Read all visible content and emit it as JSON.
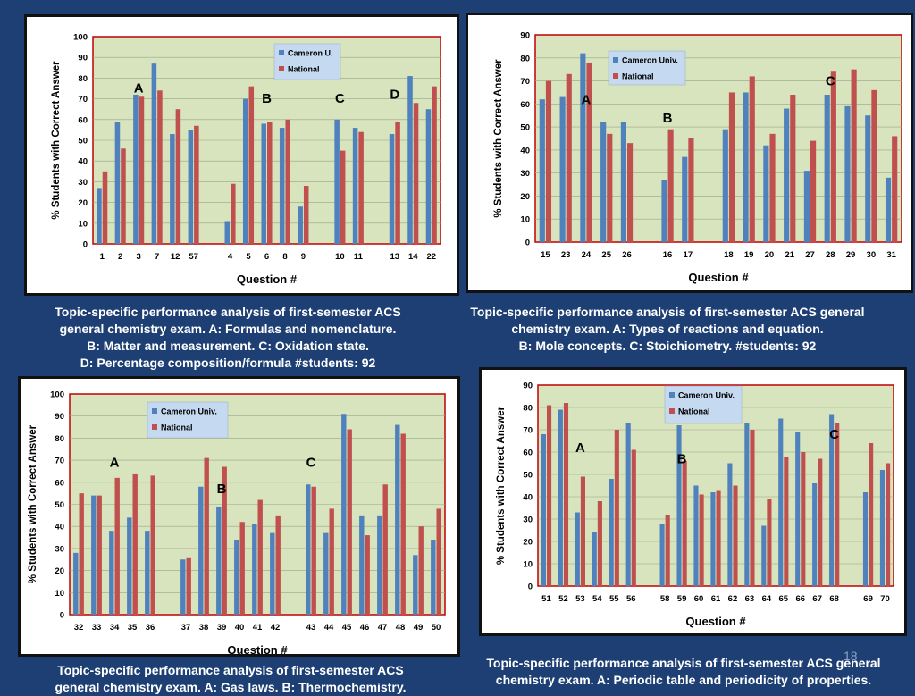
{
  "colors": {
    "series_a": "#4f81bd",
    "series_b": "#c0504d",
    "plot_bg": "#d7e4bd",
    "plot_border": "#c00000",
    "page_bg": "#1d3f73"
  },
  "page_number": "18",
  "captions": [
    [
      "Topic-specific performance analysis of first-semester ACS",
      "general chemistry exam. A: Formulas and nomenclature.",
      "B: Matter and measurement. C: Oxidation state.",
      "D: Percentage composition/formula #students: 92"
    ],
    [
      "Topic-specific performance analysis of first-semester ACS general",
      "chemistry exam. A: Types of reactions and equation.",
      "B: Mole concepts. C: Stoichiometry. #students: 92"
    ],
    [
      "Topic-specific performance analysis of first-semester ACS",
      "general chemistry exam. A: Gas laws. B: Thermochemistry."
    ],
    [
      "Topic-specific performance analysis of first-semester ACS general",
      "chemistry exam. A: Periodic table and periodicity of properties."
    ]
  ],
  "chart_data": [
    {
      "type": "bar",
      "xlabel": "Question #",
      "ylabel": "% Students with Correct Answer",
      "ylim": [
        0,
        100
      ],
      "yticks": [
        "0",
        "10",
        "20",
        "30",
        "40",
        "50",
        "60",
        "70",
        "80",
        "90",
        "100"
      ],
      "legend_position": "top-right",
      "categories": [
        "1",
        "2",
        "3",
        "7",
        "12",
        "57",
        "",
        "4",
        "5",
        "6",
        "8",
        "9",
        "",
        "10",
        "11",
        "",
        "13",
        "14",
        "22"
      ],
      "series": [
        {
          "name": "Cameron U.",
          "values": [
            27,
            59,
            72,
            87,
            53,
            55,
            null,
            11,
            70,
            58,
            56,
            18,
            null,
            60,
            56,
            null,
            53,
            81,
            65
          ]
        },
        {
          "name": "National",
          "values": [
            35,
            46,
            71,
            74,
            65,
            57,
            null,
            29,
            76,
            59,
            60,
            28,
            null,
            45,
            54,
            null,
            59,
            68,
            76
          ]
        }
      ],
      "annotations": [
        {
          "text": "A",
          "x": "3",
          "y": 73
        },
        {
          "text": "B",
          "x": "6",
          "y": 68
        },
        {
          "text": "C",
          "x": "10",
          "y": 68
        },
        {
          "text": "D",
          "x": "13",
          "y": 70
        }
      ]
    },
    {
      "type": "bar",
      "xlabel": "Question #",
      "ylabel": "% Students with Correct Answer",
      "ylim": [
        0,
        90
      ],
      "yticks": [
        "0",
        "10",
        "20",
        "30",
        "40",
        "50",
        "60",
        "70",
        "80",
        "90"
      ],
      "legend_position": "top-left",
      "categories": [
        "15",
        "23",
        "24",
        "25",
        "26",
        "",
        "16",
        "17",
        "",
        "18",
        "19",
        "20",
        "21",
        "27",
        "28",
        "29",
        "30",
        "31"
      ],
      "series": [
        {
          "name": "Cameron Univ.",
          "values": [
            62,
            63,
            82,
            52,
            52,
            null,
            27,
            37,
            null,
            49,
            65,
            42,
            58,
            31,
            64,
            59,
            55,
            28
          ]
        },
        {
          "name": "National",
          "values": [
            70,
            73,
            78,
            47,
            43,
            null,
            49,
            45,
            null,
            65,
            72,
            47,
            64,
            44,
            74,
            75,
            66,
            46
          ]
        }
      ],
      "annotations": [
        {
          "text": "A",
          "x": "24",
          "y": 60
        },
        {
          "text": "B",
          "x": "16",
          "y": 52
        },
        {
          "text": "C",
          "x": "28",
          "y": 68
        }
      ]
    },
    {
      "type": "bar",
      "xlabel": "Question #",
      "ylabel": "% Students with Correct Answer",
      "ylim": [
        0,
        100
      ],
      "yticks": [
        "0",
        "10",
        "20",
        "30",
        "40",
        "50",
        "60",
        "70",
        "80",
        "90",
        "100"
      ],
      "legend_position": "top-left",
      "categories": [
        "32",
        "33",
        "34",
        "35",
        "36",
        "",
        "37",
        "38",
        "39",
        "40",
        "41",
        "42",
        "",
        "43",
        "44",
        "45",
        "46",
        "47",
        "48",
        "49",
        "50"
      ],
      "series": [
        {
          "name": "Cameron Univ.",
          "values": [
            28,
            54,
            38,
            44,
            38,
            null,
            25,
            58,
            49,
            34,
            41,
            37,
            null,
            59,
            37,
            91,
            45,
            45,
            86,
            27,
            34
          ]
        },
        {
          "name": "National",
          "values": [
            55,
            54,
            62,
            64,
            63,
            null,
            26,
            71,
            67,
            42,
            52,
            45,
            null,
            58,
            48,
            84,
            36,
            59,
            82,
            40,
            48
          ]
        }
      ],
      "annotations": [
        {
          "text": "A",
          "x": "34",
          "y": 67
        },
        {
          "text": "B",
          "x": "39",
          "y": 55
        },
        {
          "text": "C",
          "x": "43",
          "y": 67
        }
      ]
    },
    {
      "type": "bar",
      "xlabel": "Question #",
      "ylabel": "% Students with Correct Answer",
      "ylim": [
        0,
        90
      ],
      "yticks": [
        "0",
        "10",
        "20",
        "30",
        "40",
        "50",
        "60",
        "70",
        "80",
        "90"
      ],
      "legend_position": "top-center",
      "categories": [
        "51",
        "52",
        "53",
        "54",
        "55",
        "56",
        "",
        "58",
        "59",
        "60",
        "61",
        "62",
        "63",
        "64",
        "65",
        "66",
        "67",
        "68",
        "",
        "69",
        "70"
      ],
      "series": [
        {
          "name": "Cameron Univ.",
          "values": [
            68,
            79,
            33,
            24,
            48,
            73,
            null,
            28,
            72,
            45,
            42,
            55,
            73,
            27,
            75,
            69,
            46,
            77,
            null,
            42,
            52
          ]
        },
        {
          "name": "National",
          "values": [
            81,
            82,
            49,
            38,
            70,
            61,
            null,
            32,
            56,
            41,
            43,
            45,
            70,
            39,
            58,
            60,
            57,
            73,
            null,
            64,
            55
          ]
        }
      ],
      "annotations": [
        {
          "text": "A",
          "x": "53",
          "y": 60
        },
        {
          "text": "B",
          "x": "59",
          "y": 55
        },
        {
          "text": "C",
          "x": "68",
          "y": 66
        }
      ]
    }
  ]
}
